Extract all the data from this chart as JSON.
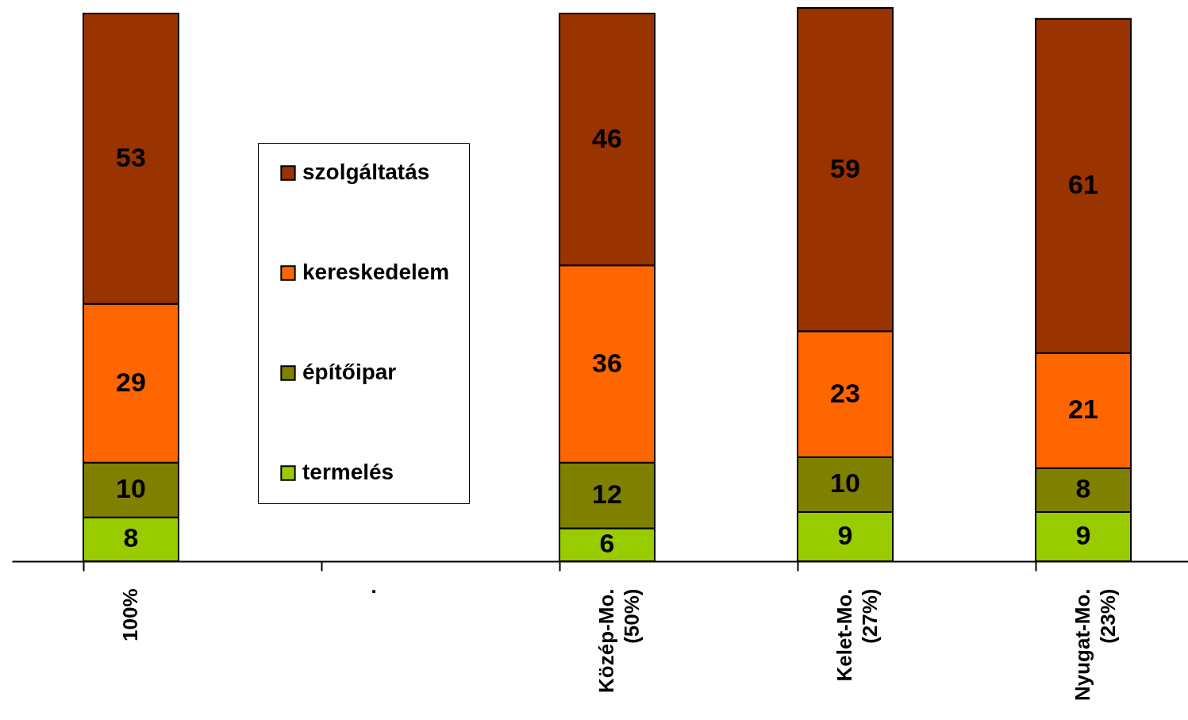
{
  "chart_data": {
    "type": "bar",
    "stacked": true,
    "data_labels": true,
    "legend": "left",
    "categories": [
      "100%",
      ".",
      "Közép-Mo. (50%)",
      "Kelet-Mo. (27%)",
      "Nyugat-Mo. (23%)"
    ],
    "series": [
      {
        "name": "termelés",
        "color": "#99cc00",
        "values": [
          8,
          null,
          6,
          9,
          9
        ]
      },
      {
        "name": "építőipar",
        "color": "#808000",
        "values": [
          10,
          null,
          12,
          10,
          8
        ]
      },
      {
        "name": "kereskedelem",
        "color": "#ff6600",
        "values": [
          29,
          null,
          36,
          23,
          21
        ]
      },
      {
        "name": "szolgáltatás",
        "color": "#993300",
        "values": [
          53,
          null,
          46,
          59,
          61
        ]
      }
    ]
  }
}
